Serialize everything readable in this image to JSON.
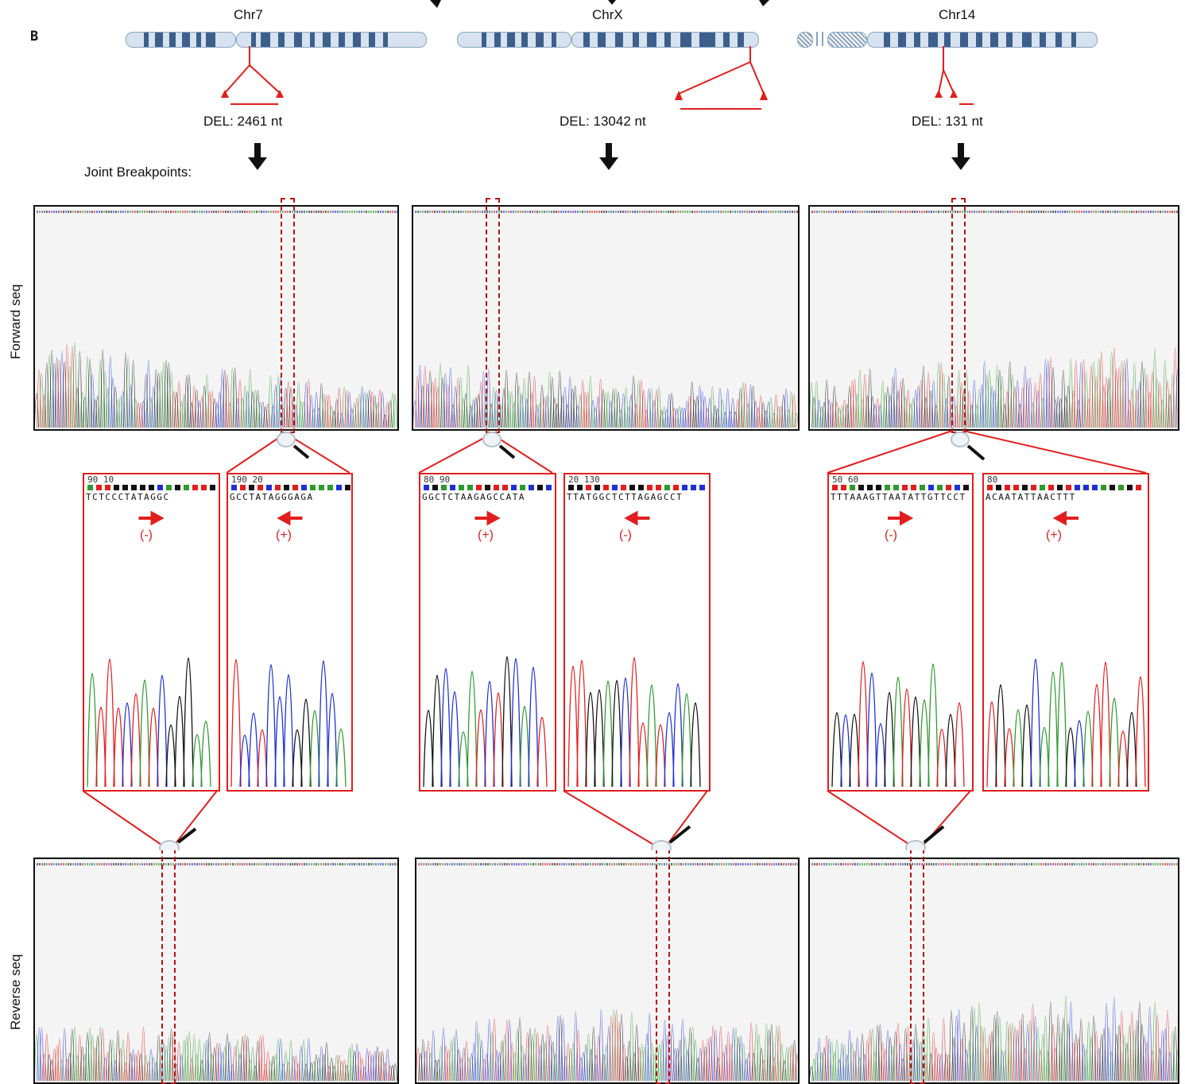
{
  "panel_label": "B",
  "chromosomes": [
    {
      "name": "Chr7",
      "deletion": "DEL: 2461 nt"
    },
    {
      "name": "ChrX",
      "deletion": "DEL: 13042 nt"
    },
    {
      "name": "Chr14",
      "deletion": "DEL: 131 nt"
    }
  ],
  "joint_label": "Joint Breakpoints:",
  "row_labels": {
    "forward": "Forward seq",
    "reverse": "Reverse seq"
  },
  "zooms": [
    {
      "ruler": "90 10",
      "bases": "TCTCCCTATAGGC",
      "sign": "(-)",
      "arrow": "right"
    },
    {
      "ruler": "190 20",
      "bases": "GCCTATAGGGAGA",
      "sign": "(+)",
      "arrow": "left"
    },
    {
      "ruler": "80 90",
      "bases": "GGCTCTAAGAGCCATA",
      "sign": "(+)",
      "arrow": "right"
    },
    {
      "ruler": "20 130",
      "bases": "TTATGGCTCTTAGAGCCT",
      "sign": "(-)",
      "arrow": "left"
    },
    {
      "ruler": "50 60",
      "bases": "TTTAAAGTTAATATTGTTCCT",
      "sign": "(-)",
      "arrow": "right"
    },
    {
      "ruler": "80",
      "bases": "ACAATATTAACTTT",
      "sign": "(+)",
      "arrow": "left"
    }
  ],
  "colors": {
    "red": "#e21d1d",
    "dark_red": "#b31515",
    "A": "#2e9a2e",
    "C": "#1e2fd6",
    "G": "#111111",
    "T": "#e21d1d"
  }
}
